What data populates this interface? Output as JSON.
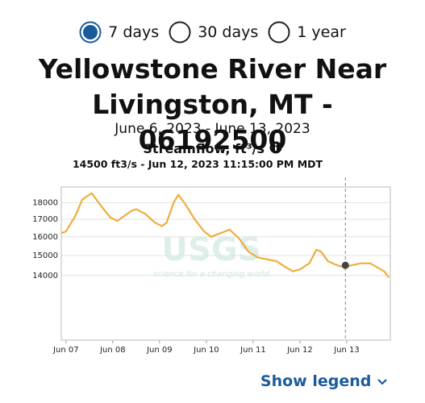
{
  "options": [
    {
      "label": "7 days",
      "selected": true
    },
    {
      "label": "30 days",
      "selected": false
    },
    {
      "label": "1 year",
      "selected": false
    }
  ],
  "title": "Yellowstone River Near Livingston, MT - 06192500",
  "date_range": "June 6, 2023 - June 13, 2023",
  "show_legend": "Show legend",
  "chart_data": {
    "type": "line",
    "title": "Streamflow, ft³/s",
    "highlight": {
      "label": "14500 ft3/s - Jun 12, 2023 11:15:00 PM MDT",
      "x": 12.97,
      "value": 14500
    },
    "watermark": {
      "logo": "USGS",
      "tagline": "science for a changing world"
    },
    "color": "#f0ad3c",
    "log_scale": true,
    "grid": true,
    "x": [
      6.9,
      7.0,
      7.2,
      7.35,
      7.55,
      7.75,
      7.95,
      8.1,
      8.2,
      8.4,
      8.5,
      8.7,
      8.9,
      9.05,
      9.15,
      9.3,
      9.4,
      9.55,
      9.75,
      9.95,
      10.1,
      10.3,
      10.5,
      10.7,
      10.9,
      11.1,
      11.3,
      11.5,
      11.7,
      11.85,
      12.0,
      12.2,
      12.35,
      12.45,
      12.6,
      12.8,
      12.95,
      13.1,
      13.3,
      13.5,
      13.65,
      13.8,
      13.9
    ],
    "values": [
      16200,
      16300,
      17200,
      18200,
      18600,
      17800,
      17100,
      16900,
      17100,
      17500,
      17600,
      17300,
      16800,
      16600,
      16800,
      18000,
      18500,
      17900,
      17000,
      16300,
      16000,
      16200,
      16400,
      15900,
      15200,
      14900,
      14800,
      14700,
      14400,
      14200,
      14300,
      14600,
      15300,
      15200,
      14700,
      14500,
      14400,
      14500,
      14600,
      14600,
      14400,
      14200,
      13900
    ],
    "xlim": [
      6.9,
      13.93
    ],
    "ylim": [
      11200,
      19000
    ],
    "xticks": [
      {
        "value": 7,
        "label": "Jun 07"
      },
      {
        "value": 8,
        "label": "Jun 08"
      },
      {
        "value": 9,
        "label": "Jun 09"
      },
      {
        "value": 10,
        "label": "Jun 10"
      },
      {
        "value": 11,
        "label": "Jun 11"
      },
      {
        "value": 12,
        "label": "Jun 12"
      },
      {
        "value": 13,
        "label": "Jun 13"
      }
    ],
    "yticks": [
      14000,
      15000,
      16000,
      17000,
      18000
    ]
  }
}
